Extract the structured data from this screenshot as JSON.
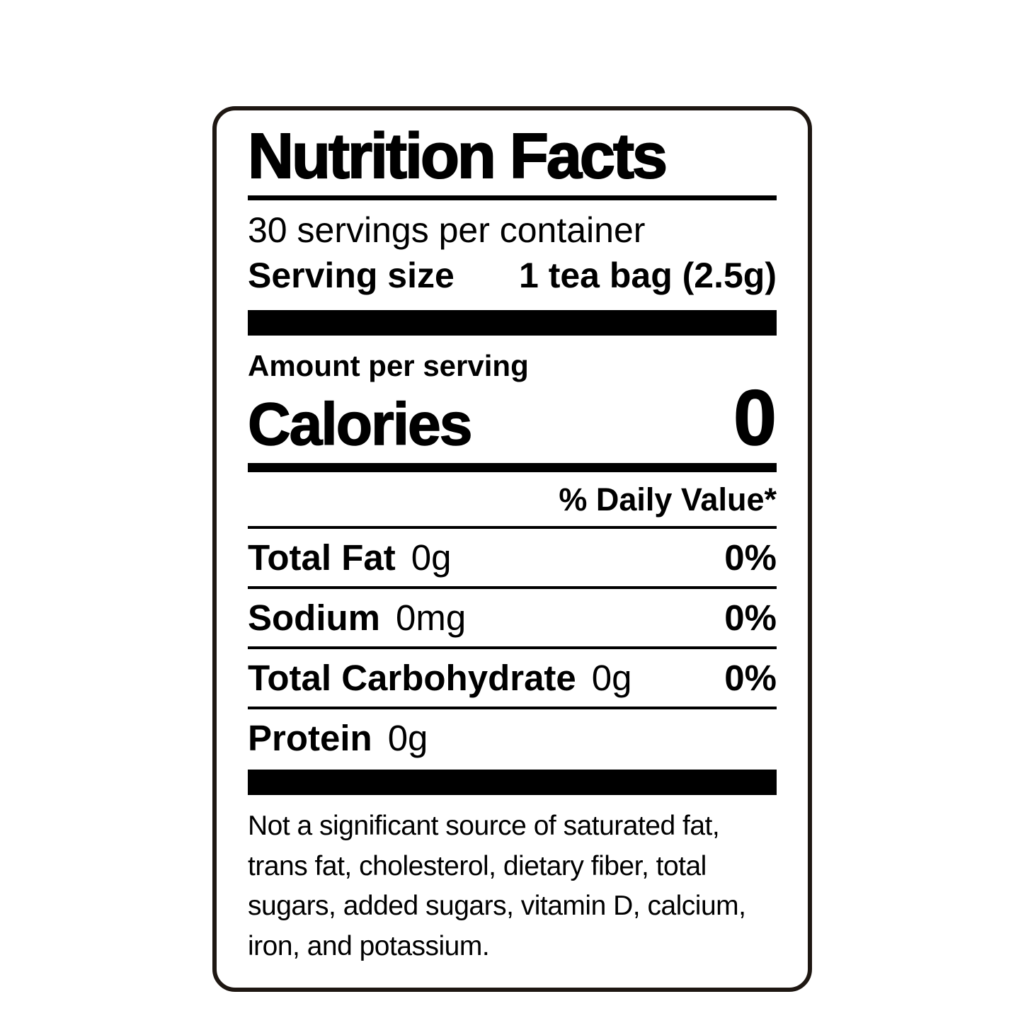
{
  "label": {
    "title": "Nutrition Facts",
    "servings_per_container": "30 servings per container",
    "serving_size_label": "Serving size",
    "serving_size_value": "1 tea bag (2.5g)",
    "amount_per_serving": "Amount per serving",
    "calories_label": "Calories",
    "calories_value": "0",
    "daily_value_header": "% Daily Value*",
    "nutrients": [
      {
        "name": "Total Fat",
        "amount": "0g",
        "dv": "0%"
      },
      {
        "name": "Sodium",
        "amount": "0mg",
        "dv": "0%"
      },
      {
        "name": "Total Carbohydrate",
        "amount": "0g",
        "dv": "0%"
      },
      {
        "name": "Protein",
        "amount": "0g",
        "dv": ""
      }
    ],
    "footnote": "Not a significant source of saturated fat, trans fat, cholesterol, dietary fiber, total sugars, added sugars, vitamin D, calcium, iron, and potassium."
  },
  "colors": {
    "text": "#000000",
    "border": "#1e1712",
    "background": "#ffffff"
  }
}
